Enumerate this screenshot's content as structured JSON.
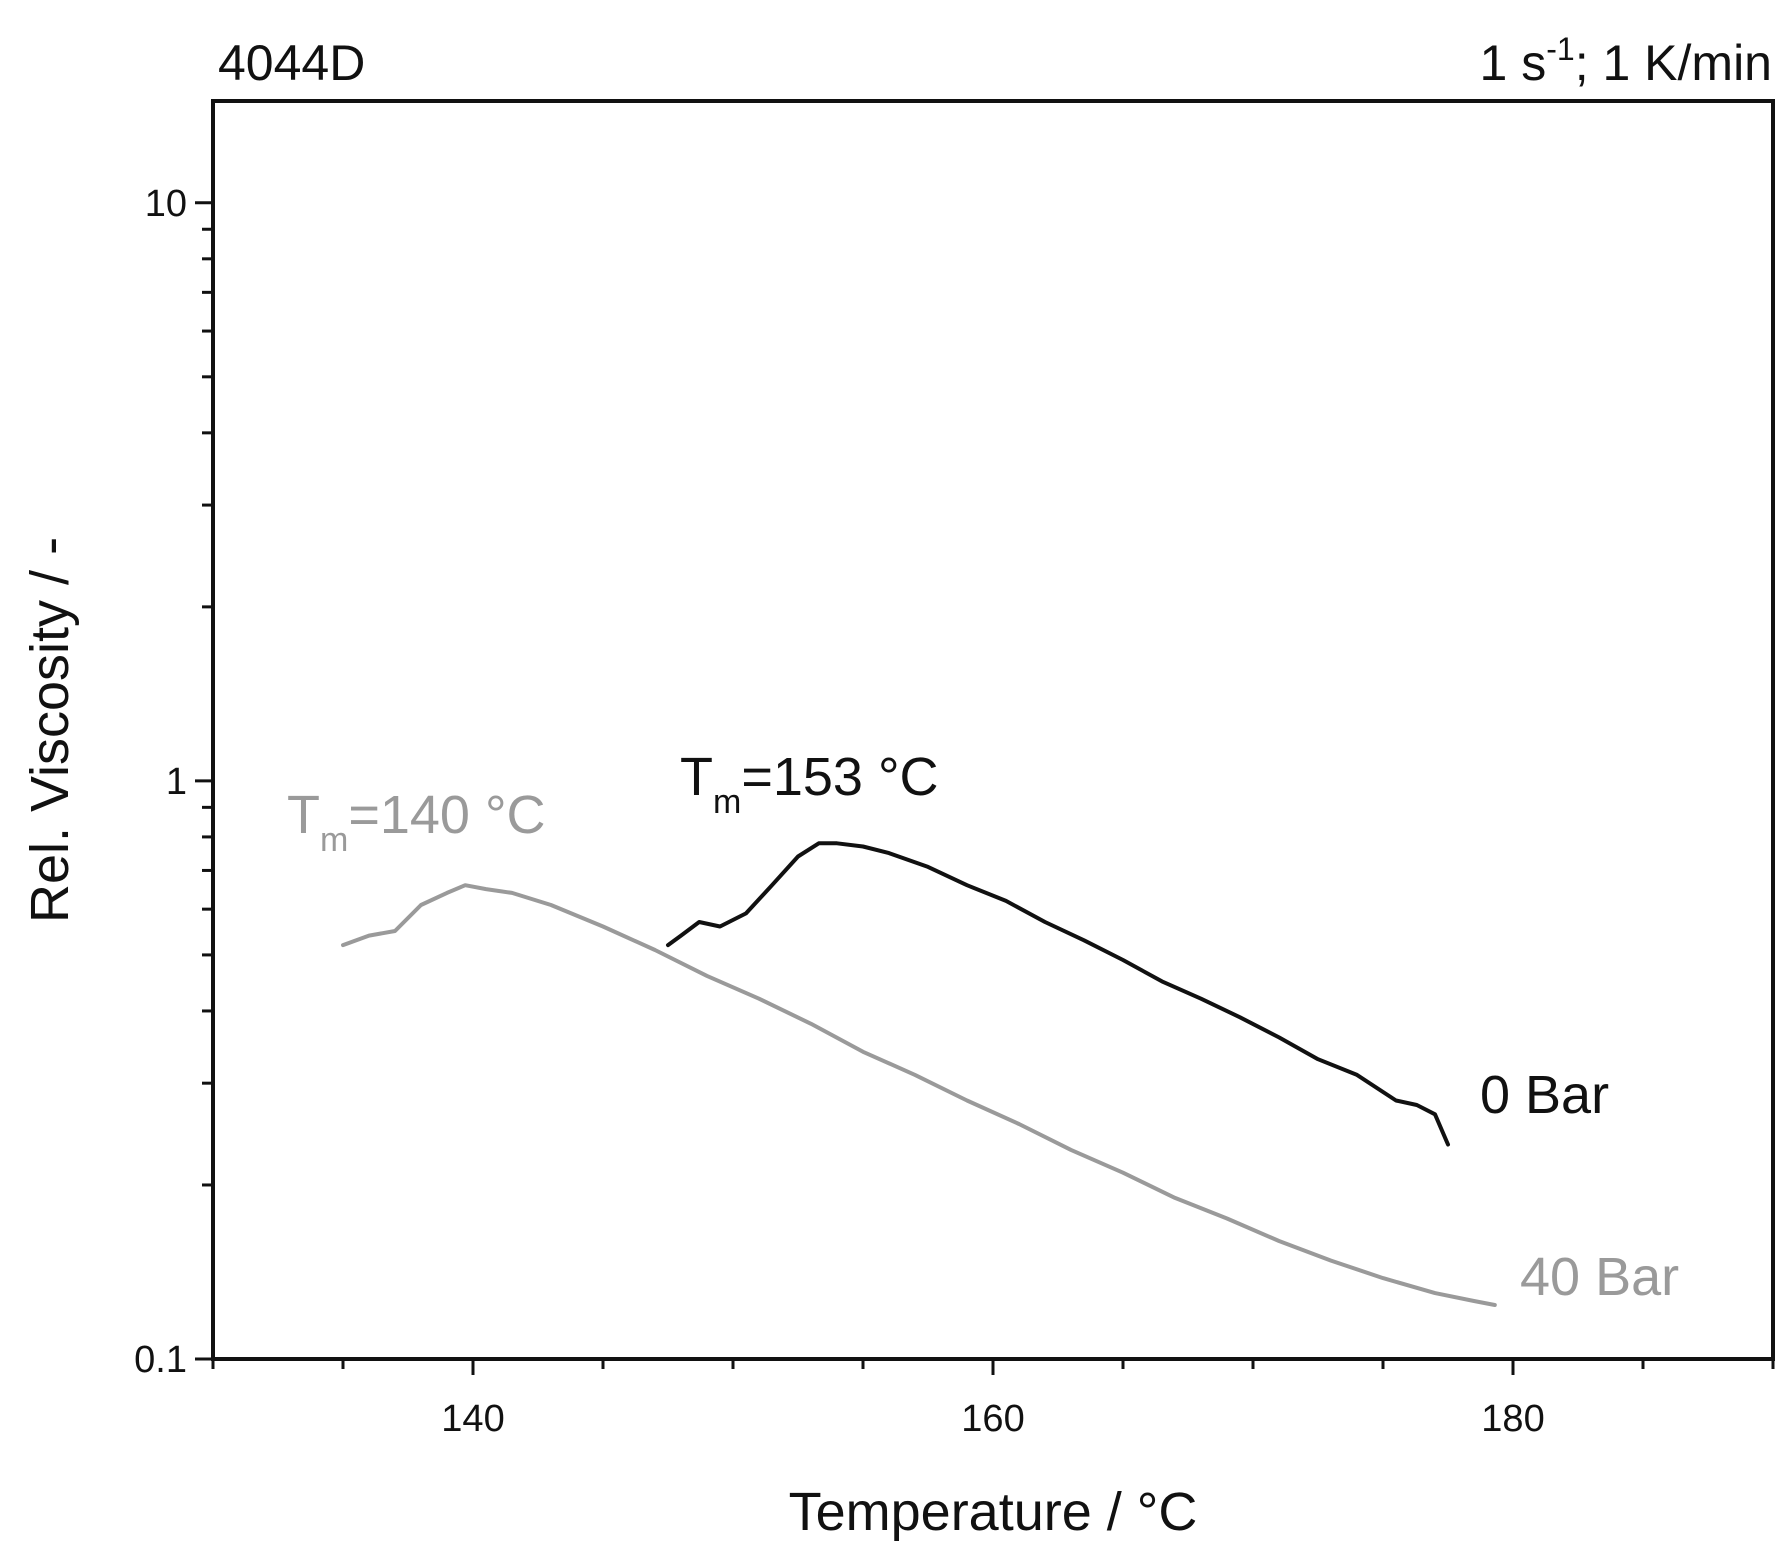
{
  "chart_data": {
    "type": "line",
    "title_left": "4044D",
    "title_right": {
      "main": "1 s",
      "sup": "-1",
      "rest": "; 1 K/min"
    },
    "xlabel": "Temperature  /  °C",
    "ylabel": "Rel. Viscosity / -",
    "xlim": [
      130,
      190
    ],
    "ylim": [
      0.1,
      15
    ],
    "yscale": "log",
    "x_ticks": [
      140,
      160,
      180
    ],
    "y_ticks": [
      {
        "value": 0.1,
        "label": "0.1"
      },
      {
        "value": 1,
        "label": "1"
      },
      {
        "value": 10,
        "label": "10"
      }
    ],
    "grid": false,
    "series": [
      {
        "name": "0 Bar",
        "color": "#111111",
        "x": [
          147.5,
          148.0,
          148.7,
          149.5,
          150.5,
          151.5,
          152.5,
          153.3,
          154.0,
          155.0,
          156.0,
          157.5,
          159.0,
          160.5,
          162.0,
          163.5,
          165.0,
          166.5,
          168.0,
          169.5,
          171.0,
          172.5,
          174.0,
          175.5,
          176.3,
          177.0,
          177.5
        ],
        "y": [
          0.52,
          0.54,
          0.57,
          0.56,
          0.59,
          0.66,
          0.74,
          0.78,
          0.78,
          0.77,
          0.75,
          0.71,
          0.66,
          0.62,
          0.57,
          0.53,
          0.49,
          0.45,
          0.42,
          0.39,
          0.36,
          0.33,
          0.31,
          0.28,
          0.275,
          0.265,
          0.235
        ]
      },
      {
        "name": "40 Bar",
        "color": "#9a9a9a",
        "x": [
          135.0,
          136.0,
          137.0,
          138.0,
          139.0,
          139.7,
          140.5,
          141.5,
          143.0,
          145.0,
          147.0,
          149.0,
          151.0,
          153.0,
          155.0,
          157.0,
          159.0,
          161.0,
          163.0,
          165.0,
          167.0,
          169.0,
          171.0,
          173.0,
          175.0,
          177.0,
          178.5,
          179.3
        ],
        "y": [
          0.52,
          0.54,
          0.55,
          0.61,
          0.64,
          0.66,
          0.65,
          0.64,
          0.61,
          0.56,
          0.51,
          0.46,
          0.42,
          0.38,
          0.34,
          0.31,
          0.28,
          0.255,
          0.23,
          0.21,
          0.19,
          0.175,
          0.16,
          0.148,
          0.138,
          0.13,
          0.126,
          0.124
        ]
      }
    ],
    "annotations": [
      {
        "main": "T",
        "sub": "m",
        "rest": "=153 °C",
        "color": "#111111"
      },
      {
        "main": "T",
        "sub": "m",
        "rest": "=140 °C",
        "color": "#9a9a9a"
      }
    ]
  }
}
